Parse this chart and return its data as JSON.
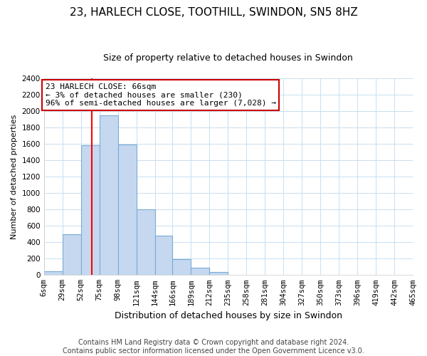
{
  "title": "23, HARLECH CLOSE, TOOTHILL, SWINDON, SN5 8HZ",
  "subtitle": "Size of property relative to detached houses in Swindon",
  "xlabel": "Distribution of detached houses by size in Swindon",
  "ylabel": "Number of detached properties",
  "footer_line1": "Contains HM Land Registry data © Crown copyright and database right 2024.",
  "footer_line2": "Contains public sector information licensed under the Open Government Licence v3.0.",
  "bar_color": "#c5d8f0",
  "bar_edge_color": "#7aabd4",
  "annotation_box_edge_color": "#cc0000",
  "annotation_line1": "23 HARLECH CLOSE: 66sqm",
  "annotation_line2": "← 3% of detached houses are smaller (230)",
  "annotation_line3": "96% of semi-detached houses are larger (7,028) →",
  "property_size": 66,
  "bin_edges": [
    6,
    29,
    52,
    75,
    98,
    121,
    144,
    166,
    189,
    212,
    235,
    258,
    281,
    304,
    327,
    350,
    373,
    396,
    419,
    442,
    465
  ],
  "bar_heights": [
    50,
    500,
    1580,
    1950,
    1590,
    800,
    480,
    190,
    90,
    35,
    0,
    0,
    0,
    0,
    0,
    0,
    0,
    0,
    0,
    0
  ],
  "tick_labels": [
    "6sqm",
    "29sqm",
    "52sqm",
    "75sqm",
    "98sqm",
    "121sqm",
    "144sqm",
    "166sqm",
    "189sqm",
    "212sqm",
    "235sqm",
    "258sqm",
    "281sqm",
    "304sqm",
    "327sqm",
    "350sqm",
    "373sqm",
    "396sqm",
    "419sqm",
    "442sqm",
    "465sqm"
  ],
  "ylim": [
    0,
    2400
  ],
  "yticks": [
    0,
    200,
    400,
    600,
    800,
    1000,
    1200,
    1400,
    1600,
    1800,
    2000,
    2200,
    2400
  ],
  "title_fontsize": 11,
  "subtitle_fontsize": 9,
  "ylabel_fontsize": 8,
  "xlabel_fontsize": 9,
  "annotation_fontsize": 8,
  "footer_fontsize": 7,
  "tick_fontsize": 7.5
}
